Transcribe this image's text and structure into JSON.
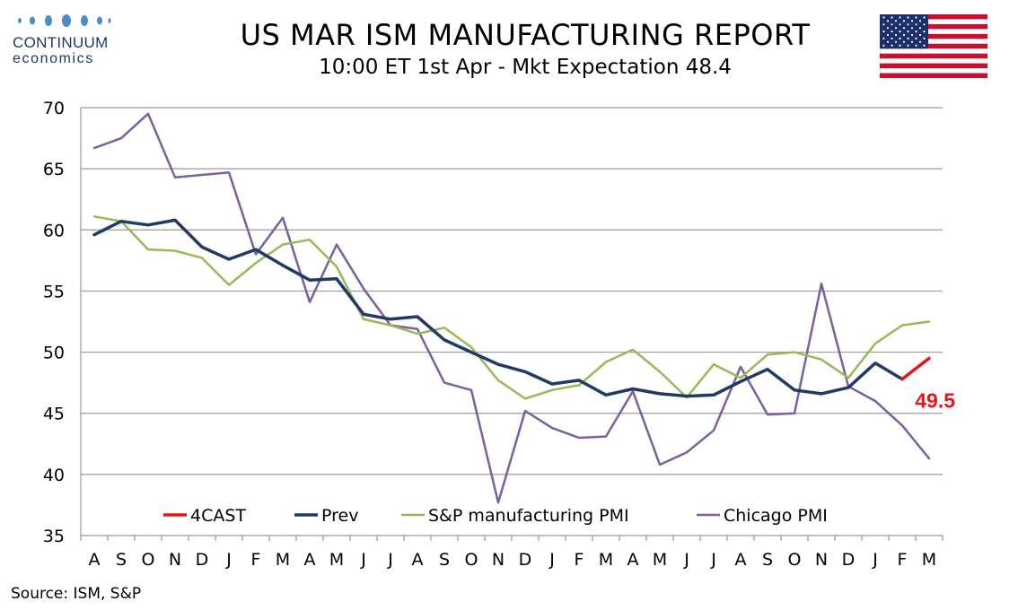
{
  "header": {
    "logo_name": "CONTINUUM",
    "logo_sub": "economics",
    "title": "US MAR ISM MANUFACTURING REPORT",
    "subtitle": "10:00 ET 1st Apr - Mkt Expectation 48.4"
  },
  "flag_icon": "us-flag-icon",
  "footer": {
    "source": "Source: ISM, S&P"
  },
  "chart_data": {
    "type": "line",
    "categories": [
      "A",
      "S",
      "O",
      "N",
      "D",
      "J",
      "F",
      "M",
      "A",
      "M",
      "J",
      "J",
      "A",
      "S",
      "O",
      "N",
      "D",
      "J",
      "F",
      "M",
      "A",
      "M",
      "J",
      "J",
      "A",
      "S",
      "O",
      "N",
      "D",
      "J",
      "F",
      "M"
    ],
    "ylim": [
      35,
      70
    ],
    "yticks": [
      35,
      40,
      45,
      50,
      55,
      60,
      65,
      70
    ],
    "grid": true,
    "legend_position": "bottom",
    "series": [
      {
        "name": "4CAST",
        "color": "#e8141b",
        "width": 3.5,
        "values": [
          null,
          null,
          null,
          null,
          null,
          null,
          null,
          null,
          null,
          null,
          null,
          null,
          null,
          null,
          null,
          null,
          null,
          null,
          null,
          null,
          null,
          null,
          null,
          null,
          null,
          null,
          null,
          null,
          null,
          null,
          47.8,
          49.5
        ]
      },
      {
        "name": "Prev",
        "color": "#1f3a64",
        "width": 3.5,
        "values": [
          59.6,
          60.7,
          60.4,
          60.8,
          58.6,
          57.6,
          58.4,
          57.1,
          55.9,
          56.0,
          53.1,
          52.7,
          52.9,
          51.0,
          50.0,
          49.0,
          48.4,
          47.4,
          47.7,
          46.5,
          47.0,
          46.6,
          46.4,
          46.5,
          47.6,
          48.6,
          46.9,
          46.6,
          47.1,
          49.1,
          47.8,
          null
        ]
      },
      {
        "name": "S&P manufacturing PMI",
        "color": "#97b957",
        "width": 2.5,
        "values": [
          61.1,
          60.7,
          58.4,
          58.3,
          57.7,
          55.5,
          57.3,
          58.8,
          59.2,
          57.0,
          52.7,
          52.2,
          51.5,
          52.0,
          50.4,
          47.7,
          46.2,
          46.9,
          47.3,
          49.2,
          50.2,
          48.4,
          46.3,
          49.0,
          47.9,
          49.8,
          50.0,
          49.4,
          47.9,
          50.7,
          52.2,
          52.5
        ]
      },
      {
        "name": "Chicago PMI",
        "color": "#7b5fa0",
        "width": 2.5,
        "values": [
          66.7,
          67.5,
          69.5,
          64.3,
          64.5,
          64.7,
          58.0,
          61.0,
          54.1,
          58.8,
          55.2,
          52.2,
          51.9,
          47.5,
          46.9,
          37.7,
          45.2,
          43.8,
          43.0,
          43.1,
          46.8,
          40.8,
          41.8,
          43.6,
          48.8,
          44.9,
          45.0,
          55.6,
          47.2,
          46.0,
          44.0,
          41.3
        ]
      }
    ],
    "annotations": [
      {
        "text": "49.5",
        "color": "#e8141b"
      }
    ]
  }
}
